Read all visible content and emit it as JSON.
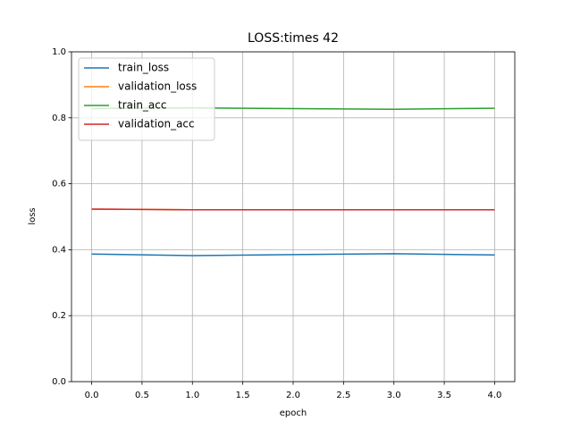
{
  "chart_data": {
    "type": "line",
    "title": "LOSS:times 42",
    "xlabel": "epoch",
    "ylabel": "loss",
    "x": [
      0,
      1,
      2,
      3,
      4
    ],
    "series": [
      {
        "name": "train_loss",
        "color": "#1f77b4",
        "values": [
          0.387,
          0.382,
          0.385,
          0.388,
          0.384
        ]
      },
      {
        "name": "validation_loss",
        "color": "#ff7f0e",
        "values": [
          0.523,
          0.521,
          0.521,
          0.521,
          0.521
        ]
      },
      {
        "name": "train_acc",
        "color": "#2ca02c",
        "values": [
          0.828,
          0.83,
          0.828,
          0.826,
          0.829
        ]
      },
      {
        "name": "validation_acc",
        "color": "#d62728",
        "values": [
          0.523,
          0.521,
          0.521,
          0.521,
          0.521
        ]
      }
    ],
    "xlim": [
      -0.2,
      4.2
    ],
    "xticks": [
      {
        "value": 0,
        "label": "0.0"
      },
      {
        "value": 0.5,
        "label": "0.5"
      },
      {
        "value": 1,
        "label": "1.0"
      },
      {
        "value": 1.5,
        "label": "1.5"
      },
      {
        "value": 2,
        "label": "2.0"
      },
      {
        "value": 2.5,
        "label": "2.5"
      },
      {
        "value": 3,
        "label": "3.0"
      },
      {
        "value": 3.5,
        "label": "3.5"
      },
      {
        "value": 4,
        "label": "4.0"
      }
    ],
    "ylim": [
      0,
      1
    ],
    "yticks": [
      {
        "value": 0,
        "label": "0.0"
      },
      {
        "value": 0.2,
        "label": "0.2"
      },
      {
        "value": 0.4,
        "label": "0.4"
      },
      {
        "value": 0.6,
        "label": "0.6"
      },
      {
        "value": 0.8,
        "label": "0.8"
      },
      {
        "value": 1,
        "label": "1.0"
      }
    ],
    "grid": true,
    "legend": "upper left"
  }
}
